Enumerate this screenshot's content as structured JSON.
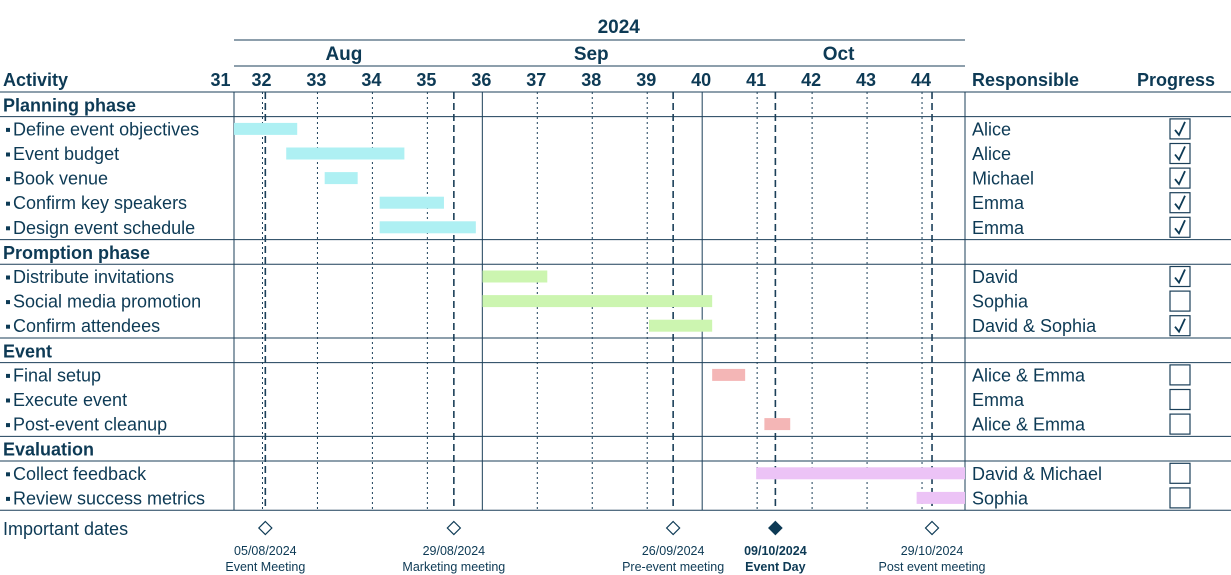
{
  "chart_data": {
    "type": "gantt",
    "year_label": "2024",
    "months": [
      {
        "label": "Aug",
        "weeks": [
          31,
          35
        ]
      },
      {
        "label": "Sep",
        "weeks": [
          36,
          39
        ]
      },
      {
        "label": "Oct",
        "weeks": [
          40,
          44
        ]
      }
    ],
    "weeks": [
      "31",
      "32",
      "33",
      "34",
      "35",
      "36",
      "37",
      "38",
      "39",
      "40",
      "41",
      "42",
      "43",
      "44"
    ],
    "columns": {
      "activity": "Activity",
      "responsible": "Responsible",
      "progress": "Progress"
    },
    "phases": [
      {
        "name": "Planning phase",
        "color": "#aef0f3",
        "tasks": [
          {
            "name": "Define event objectives",
            "start": 31.0,
            "end": 32.15,
            "responsible": "Alice",
            "done": true
          },
          {
            "name": "Event budget",
            "start": 31.95,
            "end": 34.1,
            "responsible": "Alice",
            "done": true
          },
          {
            "name": "Book venue",
            "start": 32.65,
            "end": 33.25,
            "responsible": "Michael",
            "done": true
          },
          {
            "name": "Confirm key speakers",
            "start": 33.65,
            "end": 34.82,
            "responsible": "Emma",
            "done": true
          },
          {
            "name": "Design event schedule",
            "start": 33.65,
            "end": 35.4,
            "responsible": "Emma",
            "done": true
          }
        ]
      },
      {
        "name": "Promption phase",
        "color": "#ccf5b0",
        "tasks": [
          {
            "name": "Distribute invitations",
            "start": 35.52,
            "end": 36.7,
            "responsible": "David",
            "done": true
          },
          {
            "name": "Social media promotion",
            "start": 35.52,
            "end": 39.7,
            "responsible": "Sophia",
            "done": false
          },
          {
            "name": "Confirm attendees",
            "start": 38.55,
            "end": 39.7,
            "responsible": "David & Sophia",
            "done": true
          }
        ]
      },
      {
        "name": "Event",
        "color": "#f4b6b6",
        "tasks": [
          {
            "name": "Final setup",
            "start": 39.7,
            "end": 40.3,
            "responsible": "Alice & Emma",
            "done": false
          },
          {
            "name": "Execute event",
            "start": null,
            "end": null,
            "responsible": "Emma",
            "done": false
          },
          {
            "name": "Post-event cleanup",
            "start": 40.65,
            "end": 41.12,
            "responsible": "Alice & Emma",
            "done": false
          }
        ]
      },
      {
        "name": "Evaluation",
        "color": "#ecc3f6",
        "tasks": [
          {
            "name": "Collect feedback",
            "start": 40.5,
            "end": 44.3,
            "responsible": "David & Michael",
            "done": false
          },
          {
            "name": "Review success metrics",
            "start": 43.42,
            "end": 44.3,
            "responsible": "Sophia",
            "done": false
          }
        ]
      }
    ],
    "milestones_label": "Important dates",
    "milestones": [
      {
        "date": "05/08/2024",
        "label": "Event Meeting",
        "week": 31.57,
        "highlight": false
      },
      {
        "date": "29/08/2024",
        "label": "Marketing meeting",
        "week": 35.0,
        "highlight": false
      },
      {
        "date": "26/09/2024",
        "label": "Pre-event meeting",
        "week": 38.99,
        "highlight": false
      },
      {
        "date": "09/10/2024",
        "label": "Event Day",
        "week": 40.85,
        "highlight": true
      },
      {
        "date": "29/10/2024",
        "label": "Post event meeting",
        "week": 43.7,
        "highlight": false
      }
    ],
    "colors": {
      "text": "#0d3a55",
      "grid": "#1b3f59"
    }
  }
}
